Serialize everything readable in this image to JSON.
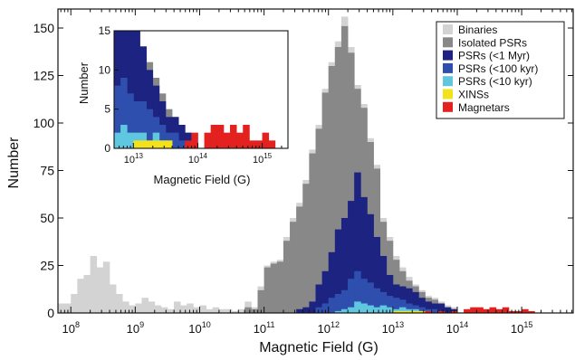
{
  "chart_data": {
    "type": "histogram",
    "scale_x": "log",
    "x_unit": "Magnetic Field (G)",
    "xlabel": "Magnetic Field (G)",
    "ylabel": "Number",
    "xlim_log10": [
      7.8,
      15.8
    ],
    "ylim": [
      0,
      160
    ],
    "bin_width_log10": 0.1,
    "xticks": [
      {
        "log10": 8,
        "base": "10",
        "exp": "8"
      },
      {
        "log10": 9,
        "base": "10",
        "exp": "9"
      },
      {
        "log10": 10,
        "base": "10",
        "exp": "10"
      },
      {
        "log10": 11,
        "base": "10",
        "exp": "11"
      },
      {
        "log10": 12,
        "base": "10",
        "exp": "12"
      },
      {
        "log10": 13,
        "base": "10",
        "exp": "13"
      },
      {
        "log10": 14,
        "base": "10",
        "exp": "14"
      },
      {
        "log10": 15,
        "base": "10",
        "exp": "15"
      }
    ],
    "yticks": [
      0,
      25,
      50,
      75,
      100,
      125,
      150
    ],
    "legend_position": "top-right",
    "legend": [
      {
        "label": "Binaries",
        "color": "#d3d3d3"
      },
      {
        "label": "Isolated PSRs",
        "color": "#888888"
      },
      {
        "label": "PSRs (<1 Myr)",
        "color": "#1c2380"
      },
      {
        "label": "PSRs (<100 kyr)",
        "color": "#2f4fae"
      },
      {
        "label": "PSRs (<10 kyr)",
        "color": "#5fc8e0"
      },
      {
        "label": "XINSs",
        "color": "#f2e21c"
      },
      {
        "label": "Magnetars",
        "color": "#e3211e"
      }
    ],
    "series": [
      {
        "name": "Binaries",
        "color": "#d3d3d3",
        "stacked_total": true,
        "bins": [
          [
            7.8,
            5
          ],
          [
            7.9,
            5
          ],
          [
            8.0,
            10
          ],
          [
            8.1,
            18
          ],
          [
            8.2,
            20
          ],
          [
            8.3,
            30
          ],
          [
            8.4,
            24
          ],
          [
            8.5,
            27
          ],
          [
            8.6,
            15
          ],
          [
            8.7,
            10
          ],
          [
            8.8,
            6
          ],
          [
            8.9,
            4
          ],
          [
            9.0,
            5
          ],
          [
            9.1,
            8
          ],
          [
            9.2,
            6
          ],
          [
            9.3,
            4
          ],
          [
            9.4,
            3
          ],
          [
            9.5,
            2
          ],
          [
            9.6,
            6
          ],
          [
            9.7,
            4
          ],
          [
            9.8,
            5
          ],
          [
            9.9,
            3
          ],
          [
            10.0,
            4
          ],
          [
            10.1,
            2
          ],
          [
            10.2,
            3
          ],
          [
            10.3,
            2
          ],
          [
            10.4,
            2
          ],
          [
            10.5,
            1
          ],
          [
            10.6,
            2
          ],
          [
            10.7,
            6
          ],
          [
            10.8,
            3
          ],
          [
            10.9,
            14
          ],
          [
            11.0,
            25
          ],
          [
            11.1,
            27
          ],
          [
            11.2,
            28
          ],
          [
            11.3,
            40
          ],
          [
            11.4,
            50
          ],
          [
            11.5,
            58
          ],
          [
            11.6,
            70
          ],
          [
            11.7,
            86
          ],
          [
            11.8,
            99
          ],
          [
            11.9,
            118
          ],
          [
            12.0,
            132
          ],
          [
            12.1,
            143
          ],
          [
            12.2,
            156
          ],
          [
            12.3,
            140
          ],
          [
            12.4,
            120
          ],
          [
            12.5,
            110
          ],
          [
            12.6,
            92
          ],
          [
            12.7,
            78
          ],
          [
            12.8,
            50
          ],
          [
            12.9,
            40
          ],
          [
            13.0,
            30
          ],
          [
            13.1,
            24
          ],
          [
            13.2,
            19
          ],
          [
            13.3,
            15
          ],
          [
            13.4,
            12
          ],
          [
            13.5,
            9
          ],
          [
            13.6,
            8
          ],
          [
            13.7,
            6
          ],
          [
            13.8,
            4
          ],
          [
            13.9,
            3
          ]
        ]
      },
      {
        "name": "Isolated PSRs",
        "color": "#888888",
        "bins": [
          [
            10.7,
            3
          ],
          [
            10.8,
            2
          ],
          [
            10.9,
            12
          ],
          [
            11.0,
            24
          ],
          [
            11.1,
            26
          ],
          [
            11.2,
            27
          ],
          [
            11.3,
            38
          ],
          [
            11.4,
            48
          ],
          [
            11.5,
            56
          ],
          [
            11.6,
            68
          ],
          [
            11.7,
            84
          ],
          [
            11.8,
            97
          ],
          [
            11.9,
            116
          ],
          [
            12.0,
            130
          ],
          [
            12.1,
            140
          ],
          [
            12.2,
            151
          ],
          [
            12.3,
            137
          ],
          [
            12.4,
            118
          ],
          [
            12.5,
            108
          ],
          [
            12.6,
            90
          ],
          [
            12.7,
            76
          ],
          [
            12.8,
            48
          ],
          [
            12.9,
            38
          ],
          [
            13.0,
            28
          ],
          [
            13.1,
            22
          ],
          [
            13.2,
            17
          ],
          [
            13.3,
            14
          ],
          [
            13.4,
            11
          ],
          [
            13.5,
            8
          ],
          [
            13.6,
            7
          ],
          [
            13.7,
            5
          ],
          [
            13.8,
            3
          ],
          [
            13.9,
            2
          ]
        ]
      },
      {
        "name": "PSRs (<1 Myr)",
        "color": "#1c2380",
        "bins": [
          [
            11.5,
            2
          ],
          [
            11.6,
            3
          ],
          [
            11.7,
            6
          ],
          [
            11.8,
            15
          ],
          [
            11.9,
            22
          ],
          [
            12.0,
            32
          ],
          [
            12.1,
            44
          ],
          [
            12.2,
            50
          ],
          [
            12.3,
            59
          ],
          [
            12.4,
            74
          ],
          [
            12.5,
            61
          ],
          [
            12.6,
            52
          ],
          [
            12.7,
            40
          ],
          [
            12.8,
            30
          ],
          [
            12.9,
            20
          ],
          [
            13.0,
            15
          ],
          [
            13.1,
            14
          ],
          [
            13.2,
            13
          ],
          [
            13.3,
            11
          ],
          [
            13.4,
            8
          ],
          [
            13.5,
            6
          ],
          [
            13.6,
            5
          ],
          [
            13.7,
            5
          ],
          [
            13.8,
            3
          ],
          [
            13.9,
            2
          ]
        ]
      },
      {
        "name": "PSRs (<100 kyr)",
        "color": "#2f4fae",
        "bins": [
          [
            11.8,
            3
          ],
          [
            11.9,
            5
          ],
          [
            12.0,
            8
          ],
          [
            12.1,
            10
          ],
          [
            12.2,
            12
          ],
          [
            12.3,
            18
          ],
          [
            12.4,
            22
          ],
          [
            12.5,
            18
          ],
          [
            12.6,
            16
          ],
          [
            12.7,
            13
          ],
          [
            12.8,
            11
          ],
          [
            12.9,
            9
          ],
          [
            13.0,
            8
          ],
          [
            13.1,
            7
          ],
          [
            13.2,
            5
          ],
          [
            13.3,
            4
          ],
          [
            13.4,
            3
          ],
          [
            13.5,
            2
          ],
          [
            13.6,
            2
          ],
          [
            13.7,
            1
          ]
        ]
      },
      {
        "name": "PSRs (<10 kyr)",
        "color": "#5fc8e0",
        "bins": [
          [
            12.1,
            1
          ],
          [
            12.2,
            2
          ],
          [
            12.3,
            3
          ],
          [
            12.4,
            6
          ],
          [
            12.5,
            5
          ],
          [
            12.6,
            4
          ],
          [
            12.7,
            3
          ],
          [
            12.8,
            4
          ],
          [
            12.9,
            3
          ],
          [
            13.0,
            2
          ],
          [
            13.1,
            3
          ],
          [
            13.2,
            2
          ],
          [
            13.3,
            2
          ],
          [
            13.4,
            1
          ]
        ]
      },
      {
        "name": "XINSs",
        "color": "#f2e21c",
        "bins": [
          [
            13.0,
            1
          ],
          [
            13.1,
            1
          ],
          [
            13.2,
            1
          ],
          [
            13.3,
            1
          ],
          [
            13.4,
            1
          ],
          [
            13.5,
            1
          ]
        ]
      },
      {
        "name": "Magnetars",
        "color": "#e3211e",
        "bins": [
          [
            13.5,
            1
          ],
          [
            13.6,
            0
          ],
          [
            13.7,
            1
          ],
          [
            13.8,
            0
          ],
          [
            13.9,
            1
          ],
          [
            14.0,
            0
          ],
          [
            14.1,
            2
          ],
          [
            14.2,
            3
          ],
          [
            14.3,
            3
          ],
          [
            14.4,
            2
          ],
          [
            14.5,
            3
          ],
          [
            14.6,
            2
          ],
          [
            14.7,
            3
          ],
          [
            14.8,
            1
          ],
          [
            14.9,
            1
          ],
          [
            15.0,
            2
          ],
          [
            15.1,
            1
          ]
        ]
      }
    ],
    "inset": {
      "xlabel": "Magnetic Field (G)",
      "ylabel": "Number",
      "xlim_log10": [
        12.7,
        15.4
      ],
      "ylim": [
        0,
        15
      ],
      "yticks": [
        0,
        5,
        10,
        15
      ],
      "xticks": [
        {
          "log10": 13,
          "base": "10",
          "exp": "13"
        },
        {
          "log10": 14,
          "base": "10",
          "exp": "14"
        },
        {
          "log10": 15,
          "base": "10",
          "exp": "15"
        }
      ],
      "series": [
        {
          "name": "Isolated PSRs",
          "color": "#888888",
          "bins": [
            [
              12.7,
              15
            ],
            [
              12.8,
              15
            ],
            [
              12.9,
              15
            ],
            [
              13.0,
              15
            ],
            [
              13.1,
              13
            ],
            [
              13.2,
              11
            ],
            [
              13.3,
              9
            ],
            [
              13.4,
              7
            ],
            [
              13.5,
              5
            ],
            [
              13.6,
              4
            ],
            [
              13.7,
              3
            ],
            [
              13.8,
              2
            ]
          ]
        },
        {
          "name": "PSRs (<1 Myr)",
          "color": "#1c2380",
          "bins": [
            [
              12.7,
              15
            ],
            [
              12.8,
              15
            ],
            [
              12.9,
              15
            ],
            [
              13.0,
              15
            ],
            [
              13.1,
              13
            ],
            [
              13.2,
              10
            ],
            [
              13.3,
              8
            ],
            [
              13.4,
              6
            ],
            [
              13.5,
              4
            ],
            [
              13.6,
              4
            ],
            [
              13.7,
              3
            ],
            [
              13.8,
              2
            ]
          ]
        },
        {
          "name": "PSRs (<100 kyr)",
          "color": "#2f4fae",
          "bins": [
            [
              12.7,
              8
            ],
            [
              12.8,
              9
            ],
            [
              12.9,
              7
            ],
            [
              13.0,
              6
            ],
            [
              13.1,
              6
            ],
            [
              13.2,
              5
            ],
            [
              13.3,
              4
            ],
            [
              13.4,
              3
            ],
            [
              13.5,
              2
            ],
            [
              13.6,
              2
            ],
            [
              13.7,
              1
            ]
          ]
        },
        {
          "name": "PSRs (<10 kyr)",
          "color": "#5fc8e0",
          "bins": [
            [
              12.7,
              2
            ],
            [
              12.8,
              3
            ],
            [
              12.9,
              2
            ],
            [
              13.0,
              2
            ],
            [
              13.1,
              2
            ],
            [
              13.2,
              1
            ],
            [
              13.3,
              2
            ],
            [
              13.4,
              1
            ],
            [
              13.5,
              1
            ]
          ]
        },
        {
          "name": "XINSs",
          "color": "#f2e21c",
          "bins": [
            [
              13.0,
              1
            ],
            [
              13.1,
              1
            ],
            [
              13.2,
              1
            ],
            [
              13.3,
              1
            ],
            [
              13.4,
              1
            ],
            [
              13.5,
              1
            ]
          ]
        },
        {
          "name": "Magnetars",
          "color": "#e3211e",
          "bins": [
            [
              13.8,
              1
            ],
            [
              13.9,
              2
            ],
            [
              14.0,
              0
            ],
            [
              14.1,
              2
            ],
            [
              14.2,
              3
            ],
            [
              14.3,
              3
            ],
            [
              14.4,
              2
            ],
            [
              14.5,
              3
            ],
            [
              14.6,
              2
            ],
            [
              14.7,
              3
            ],
            [
              14.8,
              1
            ],
            [
              14.9,
              1
            ],
            [
              15.0,
              2
            ],
            [
              15.1,
              1
            ]
          ]
        }
      ]
    }
  }
}
